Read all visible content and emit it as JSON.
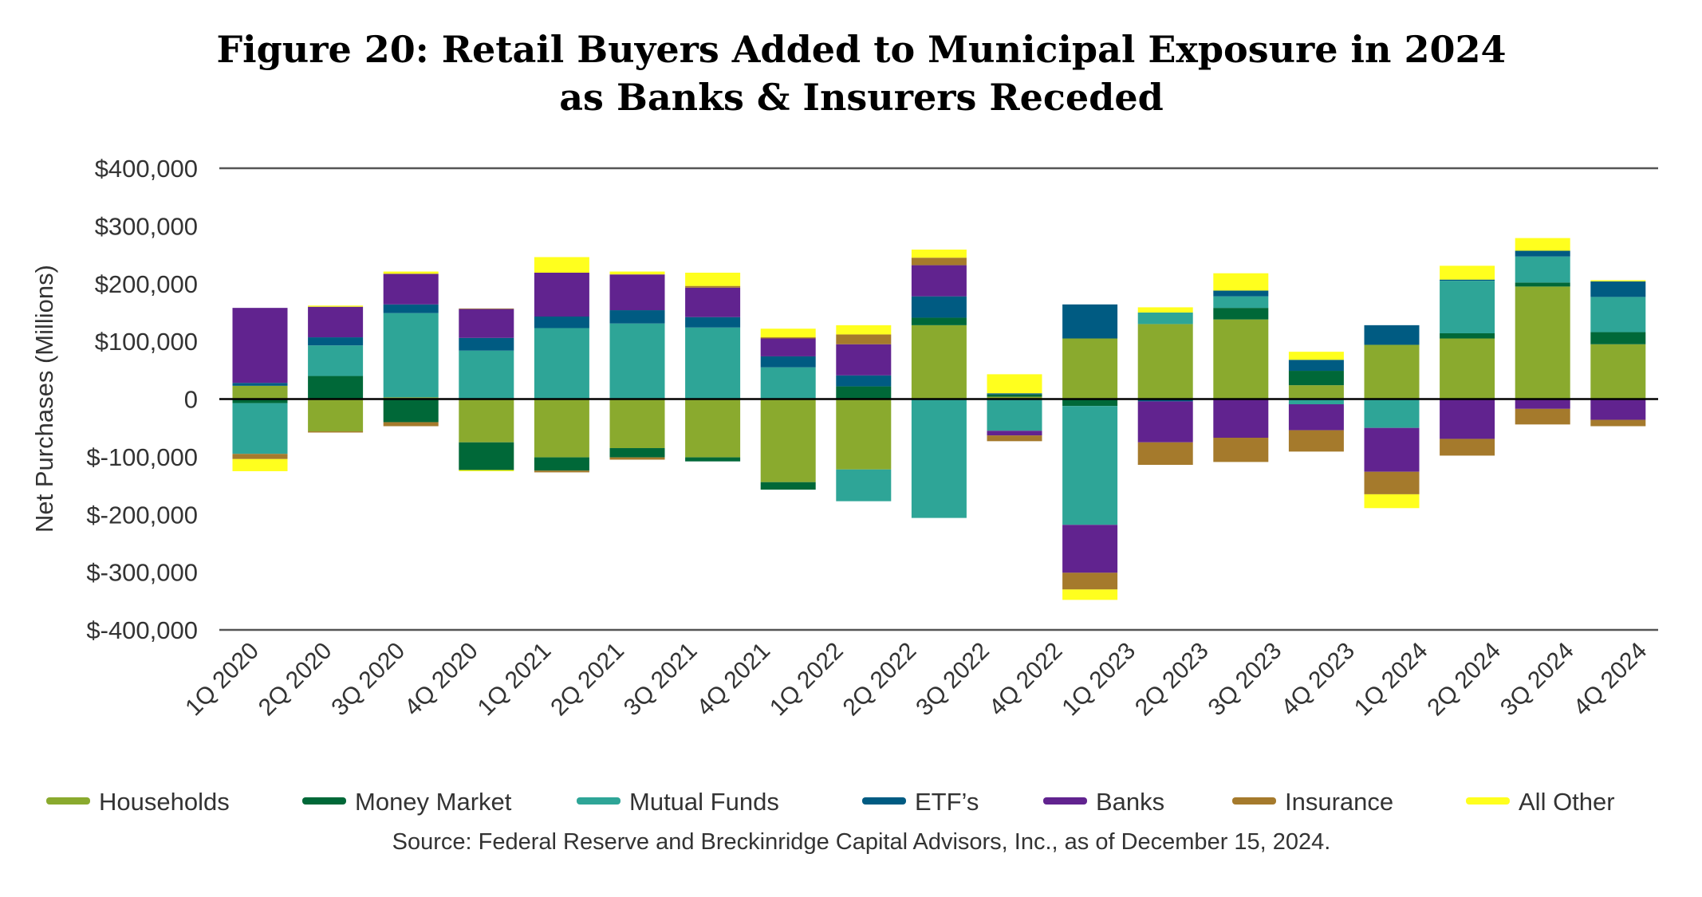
{
  "chart_data": {
    "type": "bar",
    "stacked": true,
    "title": "Figure 20: Retail Buyers Added to Municipal Exposure in 2024",
    "subtitle": "as Banks & Insurers Receded",
    "ylabel": "Net Purchases (Millions)",
    "xlabel": "",
    "ylim": [
      -400000,
      400000
    ],
    "yticks": [
      "$400,000",
      "$300,000",
      "$200,000",
      "$100,000",
      "0",
      "$-100,000",
      "$-200,000",
      "$-300,000",
      "$-400,000"
    ],
    "ytick_values": [
      400000,
      300000,
      200000,
      100000,
      0,
      -100000,
      -200000,
      -300000,
      -400000
    ],
    "grid": false,
    "legend_position": "bottom",
    "categories": [
      "1Q 2020",
      "2Q 2020",
      "3Q 2020",
      "4Q 2020",
      "1Q 2021",
      "2Q 2021",
      "3Q 2021",
      "4Q 2021",
      "1Q 2022",
      "2Q 2022",
      "3Q 2022",
      "4Q 2022",
      "1Q 2023",
      "2Q 2023",
      "3Q 2023",
      "4Q 2023",
      "1Q 2024",
      "2Q 2024",
      "3Q 2024",
      "4Q 2024"
    ],
    "series": [
      {
        "name": "Households",
        "color": "#8AAA2E",
        "values": [
          23000,
          -56000,
          3000,
          -75000,
          -101000,
          -85000,
          -101000,
          -144000,
          -122000,
          128000,
          4000,
          105000,
          130000,
          138000,
          24000,
          94000,
          105000,
          195000,
          95000,
          null
        ]
      },
      {
        "name": "Money Market",
        "color": "#006838",
        "values": [
          -7000,
          40000,
          -40000,
          -48000,
          -23000,
          -16000,
          -7000,
          -13000,
          22000,
          13000,
          4000,
          -12000,
          0,
          20000,
          25000,
          0,
          9000,
          7000,
          21000,
          null
        ]
      },
      {
        "name": "Mutual Funds",
        "color": "#2EA597",
        "values": [
          -88000,
          53000,
          146000,
          84000,
          123000,
          131000,
          124000,
          55000,
          -55000,
          -206000,
          -55000,
          -206000,
          20000,
          20000,
          -9000,
          -50000,
          91000,
          45000,
          61000,
          null
        ]
      },
      {
        "name": "ETF’s",
        "color": "#005B82",
        "values": [
          5000,
          14000,
          15000,
          22000,
          20000,
          23000,
          18000,
          19000,
          19000,
          37000,
          2000,
          59000,
          -4000,
          10000,
          19000,
          34000,
          2000,
          10000,
          27000,
          null
        ]
      },
      {
        "name": "Banks",
        "color": "#61238F",
        "values": [
          130000,
          53000,
          53000,
          50000,
          76000,
          62000,
          51000,
          31000,
          54000,
          54000,
          -8000,
          -83000,
          -71000,
          -67000,
          -45000,
          -76000,
          -69000,
          -17000,
          -36000,
          null
        ]
      },
      {
        "name": "Insurance",
        "color": "#A57A2C",
        "values": [
          -9000,
          -2000,
          -7000,
          1000,
          -3000,
          -4000,
          3000,
          2000,
          17000,
          13000,
          -10000,
          -29000,
          -39000,
          -42000,
          -37000,
          -39000,
          -29000,
          -27000,
          -11000,
          null
        ]
      },
      {
        "name": "All Other",
        "color": "#FFFF1E",
        "values": [
          -21000,
          2000,
          4000,
          -2000,
          27000,
          5000,
          23000,
          15000,
          16000,
          14000,
          33000,
          -18000,
          9000,
          30000,
          14000,
          -24000,
          24000,
          22000,
          2000,
          null
        ]
      }
    ],
    "source": "Source: Federal Reserve and Breckinridge Capital Advisors, Inc., as of December 15, 2024."
  }
}
